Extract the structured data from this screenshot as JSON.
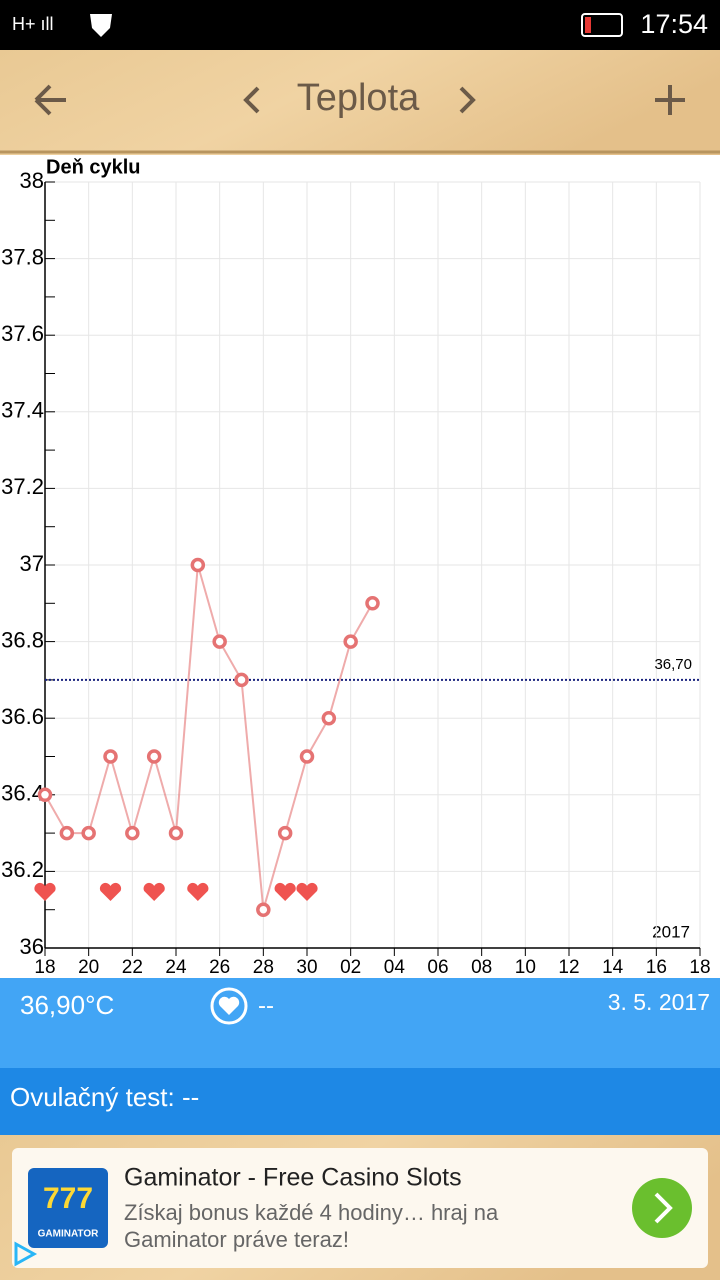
{
  "status_bar": {
    "time": "17:54"
  },
  "toolbar": {
    "title": "Teplota"
  },
  "chart_data": {
    "type": "line",
    "axis_label": "Deň cyklu",
    "annotation": "2017",
    "categories": [
      "18",
      null,
      "20",
      null,
      "22",
      null,
      "24",
      null,
      "26",
      null,
      "28",
      null,
      "30",
      null,
      "02",
      null,
      "04",
      null,
      "06",
      null,
      "08",
      null,
      "10",
      null,
      "12",
      null,
      "14",
      null,
      "16",
      null,
      "18"
    ],
    "series": [
      {
        "color": "#e57373",
        "values": [
          36.4,
          36.3,
          36.3,
          36.5,
          36.3,
          36.5,
          36.3,
          37.0,
          36.8,
          36.7,
          36.1,
          36.3,
          36.5,
          36.6,
          36.8,
          36.9,
          null,
          null,
          null,
          null,
          null,
          null,
          null,
          null,
          null,
          null,
          null,
          null,
          null,
          null,
          null
        ]
      }
    ],
    "hearts": [
      0,
      3,
      5,
      7,
      11,
      12
    ],
    "reference_line": {
      "value": 36.7,
      "label": "36,70"
    },
    "ylim": [
      36,
      38
    ],
    "yticks": [
      36,
      36.2,
      36.4,
      36.6,
      36.8,
      37,
      37.2,
      37.4,
      37.6,
      37.8,
      38
    ],
    "grid": true
  },
  "info": {
    "temperature": "36,90°C",
    "intercourse": "--",
    "date": "3. 5. 2017",
    "ovulation_test": "Ovulačný test: --"
  },
  "ad": {
    "icon_number": "777",
    "icon_brand": "GAMINATOR",
    "title": "Gaminator - Free Casino Slots",
    "text_line1": "Získaj bonus každé 4 hodiny… hraj na",
    "text_line2": "Gaminator práve teraz!"
  }
}
